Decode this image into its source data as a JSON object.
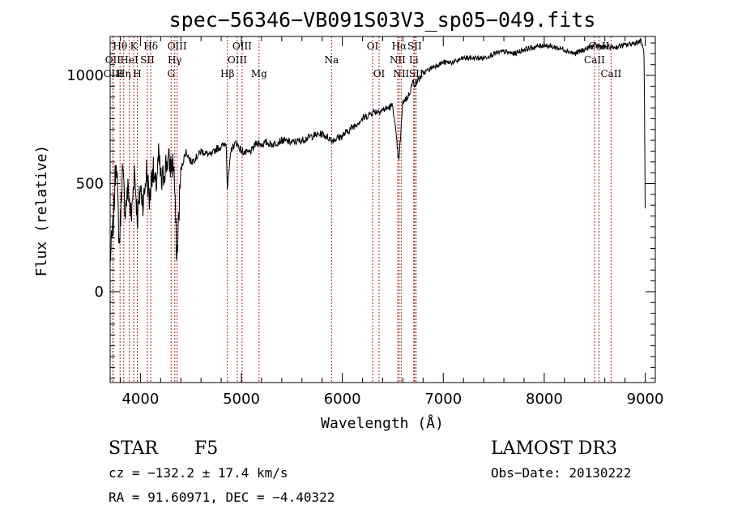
{
  "chart_data": {
    "type": "line",
    "title": "spec−56346−VB091S03V3_sp05−049.fits",
    "xlabel": "Wavelength (Å)",
    "ylabel": "Flux (relative)",
    "xlim": [
      3700,
      9100
    ],
    "ylim": [
      -420,
      1180
    ],
    "x_ticks": [
      4000,
      5000,
      6000,
      7000,
      8000,
      9000
    ],
    "x_tick_labels": [
      "4000",
      "5000",
      "6000",
      "7000",
      "8000",
      "9000"
    ],
    "y_ticks": [
      0,
      500,
      1000
    ],
    "y_tick_labels": [
      "0",
      "500",
      "1000"
    ],
    "series": [
      {
        "name": "spectrum",
        "x": [
          3700,
          3730,
          3760,
          3790,
          3820,
          3850,
          3880,
          3910,
          3940,
          3970,
          4000,
          4030,
          4060,
          4090,
          4120,
          4150,
          4180,
          4210,
          4240,
          4270,
          4300,
          4330,
          4360,
          4400,
          4450,
          4500,
          4550,
          4600,
          4650,
          4700,
          4750,
          4800,
          4850,
          4860,
          4900,
          4950,
          5000,
          5050,
          5100,
          5150,
          5200,
          5250,
          5300,
          5400,
          5500,
          5600,
          5700,
          5800,
          5900,
          6000,
          6100,
          6200,
          6300,
          6400,
          6500,
          6560,
          6600,
          6650,
          6700,
          6720,
          6800,
          6900,
          7000,
          7100,
          7200,
          7300,
          7400,
          7500,
          7600,
          7700,
          7800,
          7900,
          8000,
          8100,
          8200,
          8300,
          8400,
          8500,
          8600,
          8700,
          8800,
          8900,
          8960,
          8990,
          9000
        ],
        "y": [
          150,
          300,
          650,
          200,
          560,
          380,
          480,
          330,
          570,
          340,
          480,
          410,
          560,
          420,
          580,
          470,
          620,
          490,
          570,
          610,
          580,
          590,
          150,
          560,
          650,
          600,
          620,
          650,
          640,
          630,
          660,
          670,
          690,
          480,
          660,
          690,
          650,
          640,
          650,
          690,
          680,
          690,
          680,
          700,
          690,
          700,
          720,
          730,
          700,
          720,
          760,
          800,
          830,
          840,
          860,
          600,
          880,
          900,
          970,
          960,
          1010,
          1040,
          1060,
          1060,
          1080,
          1080,
          1080,
          1100,
          1110,
          1100,
          1120,
          1130,
          1140,
          1130,
          1120,
          1100,
          1120,
          1140,
          1130,
          1130,
          1140,
          1150,
          1160,
          1100,
          380
        ]
      }
    ],
    "line_markers": [
      {
        "label": "Hθ",
        "wavelength": 3798,
        "tier": 1
      },
      {
        "label": "OII",
        "wavelength": 3727,
        "tier": 2
      },
      {
        "label": "OIII",
        "wavelength": 3730,
        "tier": 3
      },
      {
        "label": "K",
        "wavelength": 3934,
        "tier": 1
      },
      {
        "label": "HeI",
        "wavelength": 3889,
        "tier": 2
      },
      {
        "label": "Hη",
        "wavelength": 3835,
        "tier": 3
      },
      {
        "label": "H",
        "wavelength": 3969,
        "tier": 3
      },
      {
        "label": "SII",
        "wavelength": 4069,
        "tier": 2
      },
      {
        "label": "Hδ",
        "wavelength": 4102,
        "tier": 1
      },
      {
        "label": "OIII",
        "wavelength": 4363,
        "tier": 1
      },
      {
        "label": "Hγ",
        "wavelength": 4340,
        "tier": 2
      },
      {
        "label": "G",
        "wavelength": 4304,
        "tier": 3
      },
      {
        "label": "Hβ",
        "wavelength": 4861,
        "tier": 3
      },
      {
        "label": "OIII",
        "wavelength": 5007,
        "tier": 1
      },
      {
        "label": "OIII",
        "wavelength": 4959,
        "tier": 2
      },
      {
        "label": "Mg",
        "wavelength": 5175,
        "tier": 3
      },
      {
        "label": "Na",
        "wavelength": 5893,
        "tier": 2
      },
      {
        "label": "OI",
        "wavelength": 6300,
        "tier": 1
      },
      {
        "label": "OI",
        "wavelength": 6364,
        "tier": 3
      },
      {
        "label": "Hα",
        "wavelength": 6563,
        "tier": 1
      },
      {
        "label": "NII",
        "wavelength": 6548,
        "tier": 2
      },
      {
        "label": "NII",
        "wavelength": 6583,
        "tier": 3
      },
      {
        "label": "SII",
        "wavelength": 6716,
        "tier": 1
      },
      {
        "label": "Li",
        "wavelength": 6707,
        "tier": 2
      },
      {
        "label": "SII",
        "wavelength": 6731,
        "tier": 3
      },
      {
        "label": "CaII",
        "wavelength": 8542,
        "tier": 1
      },
      {
        "label": "CaII",
        "wavelength": 8498,
        "tier": 2
      },
      {
        "label": "CaII",
        "wavelength": 8662,
        "tier": 3
      }
    ]
  },
  "info": {
    "class_label": "STAR",
    "subclass": "F5",
    "survey": "LAMOST DR3",
    "cz_label": "cz = ",
    "cz_value": "−132.2 ± 17.4 km/s",
    "obs_date": "Obs−Date: 20130222",
    "ra_label": "RA = ",
    "ra_value": "91.60971",
    "dec_label": ", DEC = ",
    "dec_value": "−4.40322"
  }
}
